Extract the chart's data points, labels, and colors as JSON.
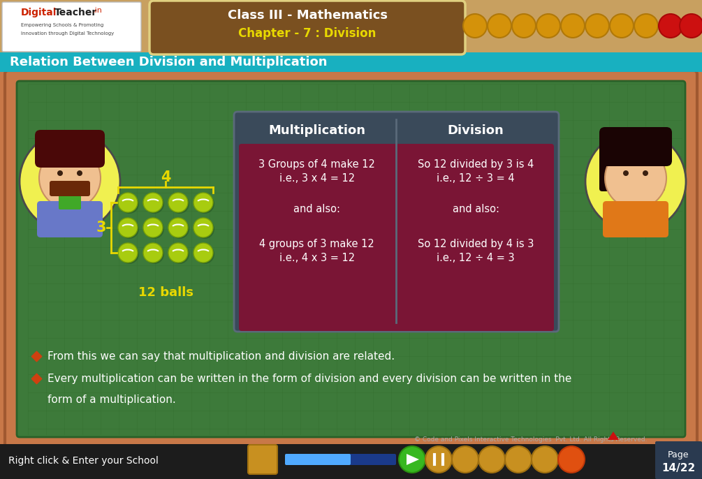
{
  "title_bar_text": "Relation Between Division and Multiplication",
  "header_text1": "Class III - Mathematics",
  "header_text2": "Chapter - 7 : Division",
  "bg_color": "#3d7a3a",
  "outer_border_color": "#c87848",
  "inner_border_color": "#9a6040",
  "top_bar_color": "#20b8c8",
  "header_bg_color": "#c8a060",
  "table_header_bg": "#3a4a5a",
  "table_body_bg": "#7a1535",
  "table_col1_header": "Multiplication",
  "table_col2_header": "Division",
  "mult_line1": "3 Groups of 4 make 12",
  "mult_line2": "i.e., 3 x 4 = 12",
  "mult_line3": "and also:",
  "mult_line4": "4 groups of 3 make 12",
  "mult_line5": "i.e., 4 x 3 = 12",
  "div_line1": "So 12 divided by 3 is 4",
  "div_line2": "i.e., 12 ÷ 3 = 4",
  "div_line3": "and also:",
  "div_line4": "So 12 divided by 4 is 3",
  "div_line5": "i.e., 12 ÷ 4 = 3",
  "bullet1": "From this we can say that multiplication and division are related.",
  "bullet2a": "Every multiplication can be written in the form of division and every division can be written in the",
  "bullet2b": "form of a multiplication.",
  "label_4": "4",
  "label_3": "3",
  "label_balls": "12 balls",
  "bottom_text": "Right click & Enter your School",
  "page_text": "14/22",
  "page_label": "Page",
  "yellow_color": "#e8d800",
  "white_color": "#ffffff",
  "bullet_color": "#d04010",
  "copyright": "© Code and Pixels Interactive Technologies  Pvt. Ltd. All Rights Reserved."
}
